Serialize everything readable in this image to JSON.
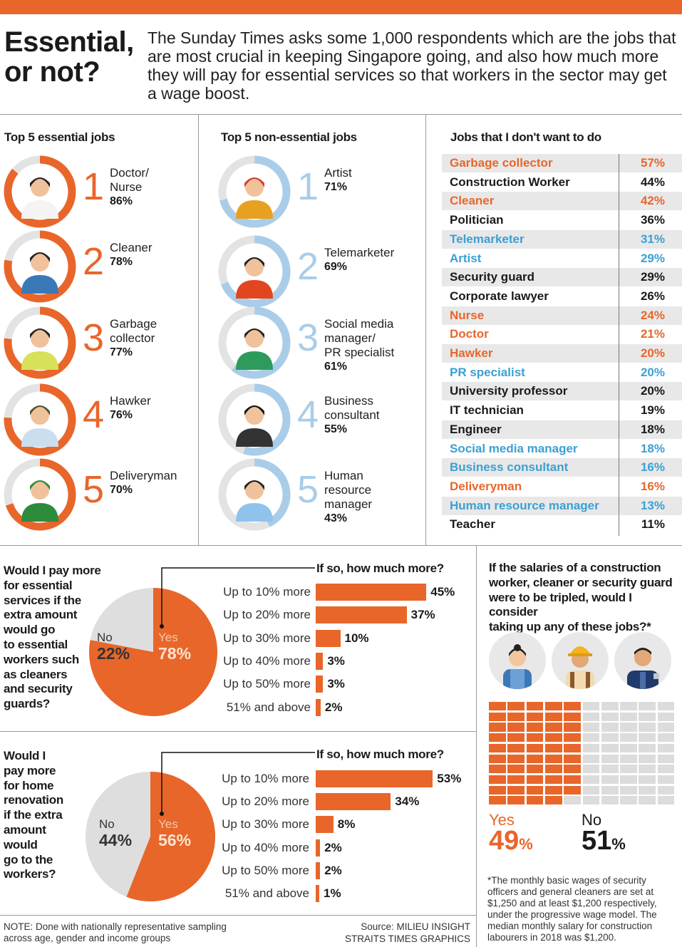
{
  "header": {
    "title_line1": "Essential,",
    "title_line2": "or not?",
    "intro": "The Sunday Times asks some 1,000 respondents which are the jobs that are most crucial in keeping Singapore going, and also how much more they will pay for essential services so that workers in the sector may get a wage boost."
  },
  "colors": {
    "accent": "#e8662a",
    "blue": "#a9cde9",
    "blue_text": "#3ba0d3",
    "grey": "#e0e0e0"
  },
  "essential": {
    "heading": "Top 5 essential jobs",
    "items": [
      {
        "rank": "1",
        "name": "Doctor/\nNurse",
        "pct_label": "86%",
        "value": 86
      },
      {
        "rank": "2",
        "name": "Cleaner",
        "pct_label": "78%",
        "value": 78
      },
      {
        "rank": "3",
        "name": "Garbage\ncollector",
        "pct_label": "77%",
        "value": 77
      },
      {
        "rank": "4",
        "name": "Hawker",
        "pct_label": "76%",
        "value": 76
      },
      {
        "rank": "5",
        "name": "Deliveryman",
        "pct_label": "70%",
        "value": 70
      }
    ]
  },
  "nonessential": {
    "heading": "Top 5 non-essential jobs",
    "items": [
      {
        "rank": "1",
        "name": "Artist",
        "pct_label": "71%",
        "value": 71
      },
      {
        "rank": "2",
        "name": "Telemarketer",
        "pct_label": "69%",
        "value": 69
      },
      {
        "rank": "3",
        "name": "Social media\nmanager/\nPR specialist",
        "pct_label": "61%",
        "value": 61
      },
      {
        "rank": "4",
        "name": "Business\nconsultant",
        "pct_label": "55%",
        "value": 55
      },
      {
        "rank": "5",
        "name": "Human\nresource\nmanager",
        "pct_label": "43%",
        "value": 43
      }
    ]
  },
  "dontwant": {
    "heading": "Jobs that I don't want to do",
    "rows": [
      {
        "label": "Garbage collector",
        "pct": "57%",
        "color": "orange"
      },
      {
        "label": "Construction Worker",
        "pct": "44%",
        "color": "black"
      },
      {
        "label": "Cleaner",
        "pct": "42%",
        "color": "orange"
      },
      {
        "label": "Politician",
        "pct": "36%",
        "color": "black"
      },
      {
        "label": "Telemarketer",
        "pct": "31%",
        "color": "blue"
      },
      {
        "label": "Artist",
        "pct": "29%",
        "color": "blue"
      },
      {
        "label": "Security guard",
        "pct": "29%",
        "color": "black"
      },
      {
        "label": "Corporate lawyer",
        "pct": "26%",
        "color": "black"
      },
      {
        "label": "Nurse",
        "pct": "24%",
        "color": "orange"
      },
      {
        "label": "Doctor",
        "pct": "21%",
        "color": "orange"
      },
      {
        "label": "Hawker",
        "pct": "20%",
        "color": "orange"
      },
      {
        "label": "PR specialist",
        "pct": "20%",
        "color": "blue"
      },
      {
        "label": "University professor",
        "pct": "20%",
        "color": "black"
      },
      {
        "label": "IT technician",
        "pct": "19%",
        "color": "black"
      },
      {
        "label": "Engineer",
        "pct": "18%",
        "color": "black"
      },
      {
        "label": "Social media manager",
        "pct": "18%",
        "color": "blue"
      },
      {
        "label": "Business consultant",
        "pct": "16%",
        "color": "blue"
      },
      {
        "label": "Deliveryman",
        "pct": "16%",
        "color": "orange"
      },
      {
        "label": "Human resource manager",
        "pct": "13%",
        "color": "blue"
      },
      {
        "label": "Teacher",
        "pct": "11%",
        "color": "black"
      }
    ]
  },
  "q1": {
    "question": "Would I pay more for essential services if the extra amount would go to essential workers such as cleaners and security guards?",
    "question_lines": [
      "Would I pay more",
      "for essential",
      "services if the",
      "extra amount",
      "would go",
      "to essential",
      "workers such",
      "as cleaners",
      "and security",
      "guards?"
    ],
    "no_label": "No",
    "no_pct": "22%",
    "no_value": 22,
    "yes_label": "Yes",
    "yes_pct": "78%",
    "yes_value": 78,
    "bars_heading": "If so, how much more?",
    "bars": [
      {
        "label": "Up to 10% more",
        "pct": "45%",
        "value": 45
      },
      {
        "label": "Up to 20% more",
        "pct": "37%",
        "value": 37
      },
      {
        "label": "Up to 30% more",
        "pct": "10%",
        "value": 10
      },
      {
        "label": "Up to 40% more",
        "pct": "3%",
        "value": 3
      },
      {
        "label": "Up to 50% more",
        "pct": "3%",
        "value": 3
      },
      {
        "label": "51% and above",
        "pct": "2%",
        "value": 2
      }
    ]
  },
  "q2": {
    "question_lines": [
      "Would I",
      "pay more",
      "for home",
      "renovation",
      "if the extra",
      "amount",
      "would",
      "go to the",
      "workers?"
    ],
    "no_label": "No",
    "no_pct": "44%",
    "no_value": 44,
    "yes_label": "Yes",
    "yes_pct": "56%",
    "yes_value": 56,
    "bars_heading": "If so, how much more?",
    "bars": [
      {
        "label": "Up to 10% more",
        "pct": "53%",
        "value": 53
      },
      {
        "label": "Up to 20% more",
        "pct": "34%",
        "value": 34
      },
      {
        "label": "Up to 30% more",
        "pct": "8%",
        "value": 8
      },
      {
        "label": "Up to 40% more",
        "pct": "2%",
        "value": 2
      },
      {
        "label": "Up to 50% more",
        "pct": "2%",
        "value": 2
      },
      {
        "label": "51% and above",
        "pct": "1%",
        "value": 1
      }
    ]
  },
  "q3": {
    "question_lines": [
      "If the salaries of a construction",
      "worker, cleaner or security guard",
      "were to be tripled, would I consider",
      "taking up any of these jobs?*"
    ],
    "yes_label": "Yes",
    "yes_pct": "49",
    "yes_sign": "%",
    "yes_value": 49,
    "no_label": "No",
    "no_pct": "51",
    "no_sign": "%",
    "no_value": 51,
    "footnote": "*The monthly basic wages of security officers and general cleaners are set at $1,250 and at least $1,200 respectively, under the progressive wage model. The median monthly salary for construction labourers in 2018 was $1,200."
  },
  "footer": {
    "note": "NOTE: Done with nationally representative sampling across age, gender and income groups",
    "source": "Source: MILIEU INSIGHT",
    "credit": "STRAITS TIMES GRAPHICS"
  },
  "chart_data": [
    {
      "type": "bar",
      "title": "Top 5 essential jobs",
      "categories": [
        "Doctor/Nurse",
        "Cleaner",
        "Garbage collector",
        "Hawker",
        "Deliveryman"
      ],
      "values": [
        86,
        78,
        77,
        76,
        70
      ]
    },
    {
      "type": "bar",
      "title": "Top 5 non-essential jobs",
      "categories": [
        "Artist",
        "Telemarketer",
        "Social media manager/PR specialist",
        "Business consultant",
        "Human resource manager"
      ],
      "values": [
        71,
        69,
        61,
        55,
        43
      ]
    },
    {
      "type": "table",
      "title": "Jobs that I don't want to do",
      "categories": [
        "Garbage collector",
        "Construction Worker",
        "Cleaner",
        "Politician",
        "Telemarketer",
        "Artist",
        "Security guard",
        "Corporate lawyer",
        "Nurse",
        "Doctor",
        "Hawker",
        "PR specialist",
        "University professor",
        "IT technician",
        "Engineer",
        "Social media manager",
        "Business consultant",
        "Deliveryman",
        "Human resource manager",
        "Teacher"
      ],
      "values": [
        57,
        44,
        42,
        36,
        31,
        29,
        29,
        26,
        24,
        21,
        20,
        20,
        20,
        19,
        18,
        18,
        16,
        16,
        13,
        11
      ]
    },
    {
      "type": "pie",
      "title": "Would I pay more for essential services",
      "categories": [
        "No",
        "Yes"
      ],
      "values": [
        22,
        78
      ]
    },
    {
      "type": "bar",
      "title": "If so, how much more? (essential services)",
      "categories": [
        "Up to 10% more",
        "Up to 20% more",
        "Up to 30% more",
        "Up to 40% more",
        "Up to 50% more",
        "51% and above"
      ],
      "values": [
        45,
        37,
        10,
        3,
        3,
        2
      ]
    },
    {
      "type": "pie",
      "title": "Would I pay more for home renovation",
      "categories": [
        "No",
        "Yes"
      ],
      "values": [
        44,
        56
      ]
    },
    {
      "type": "bar",
      "title": "If so, how much more? (home renovation)",
      "categories": [
        "Up to 10% more",
        "Up to 20% more",
        "Up to 30% more",
        "Up to 40% more",
        "Up to 50% more",
        "51% and above"
      ],
      "values": [
        53,
        34,
        8,
        2,
        2,
        1
      ]
    },
    {
      "type": "bar",
      "title": "Would I consider taking up these jobs if salaries tripled",
      "categories": [
        "Yes",
        "No"
      ],
      "values": [
        49,
        51
      ]
    }
  ]
}
